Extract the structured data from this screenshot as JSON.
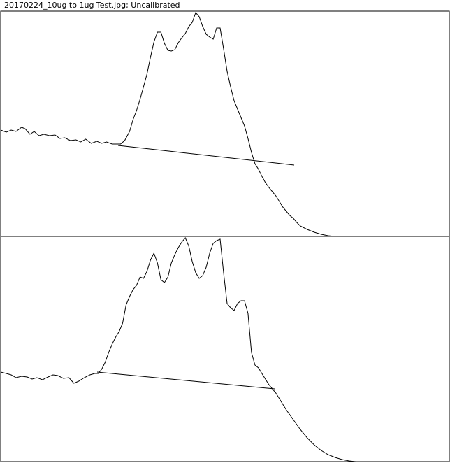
{
  "window": {
    "title": "20170224_10ug to 1ug Test.jpg; Uncalibrated"
  },
  "colors": {
    "background": "#ffffff",
    "line": "#000000"
  },
  "chart_data": [
    {
      "type": "line",
      "title": "",
      "xlabel": "",
      "ylabel": "",
      "grid": false,
      "xlim": [
        0,
        644
      ],
      "ylim": [
        0,
        322
      ],
      "series": [
        {
          "x": [
            0,
            8,
            15,
            22,
            30,
            35,
            42,
            48,
            55,
            62,
            70,
            78,
            85,
            92,
            100,
            108,
            115,
            122,
            130,
            138,
            145,
            152,
            160,
            168,
            172,
            178,
            185,
            190,
            195,
            200,
            205,
            210,
            215,
            220,
            225,
            230,
            235,
            240,
            245,
            250,
            255,
            260,
            265,
            270,
            275,
            280,
            285,
            290,
            295,
            300,
            305,
            310,
            315,
            320,
            325,
            330,
            335,
            340,
            345,
            350,
            355,
            360,
            365,
            370,
            375,
            380,
            385,
            390,
            395,
            400,
            405,
            410,
            415,
            420,
            425,
            430,
            440,
            450,
            460,
            470,
            480,
            490,
            500,
            510,
            520,
            530,
            540,
            550,
            560,
            570,
            580,
            590,
            600,
            610,
            620,
            630,
            638
          ],
          "y": [
            152,
            149,
            152,
            150,
            156,
            154,
            146,
            150,
            144,
            146,
            144,
            145,
            140,
            141,
            137,
            138,
            135,
            139,
            133,
            136,
            133,
            135,
            132,
            132,
            132,
            137,
            150,
            167,
            180,
            196,
            214,
            232,
            256,
            278,
            292,
            292,
            276,
            266,
            265,
            267,
            277,
            284,
            290,
            300,
            306,
            320,
            314,
            300,
            289,
            285,
            282,
            298,
            298,
            268,
            236,
            214,
            194,
            182,
            170,
            158,
            140,
            120,
            104,
            96,
            86,
            77,
            70,
            64,
            58,
            50,
            42,
            36,
            30,
            26,
            20,
            15,
            10,
            6,
            3,
            1,
            0,
            0,
            0,
            0,
            0,
            0,
            0,
            0,
            0,
            0,
            0,
            0,
            0,
            0,
            0,
            0,
            0
          ]
        },
        {
          "x": [
            0,
            8,
            15,
            22,
            30,
            38,
            45,
            52,
            60,
            68,
            75,
            82,
            90,
            98,
            105,
            112,
            120,
            128,
            135,
            140,
            145,
            150,
            155,
            160,
            165,
            170,
            175,
            180,
            185,
            190,
            195,
            200,
            205,
            210,
            215,
            220,
            225,
            230,
            235,
            240,
            245,
            250,
            255,
            260,
            265,
            270,
            275,
            280,
            285,
            290,
            295,
            300,
            305,
            310,
            315,
            320,
            325,
            330,
            335,
            340,
            345,
            350,
            355,
            360,
            365,
            370,
            375,
            380,
            385,
            390,
            395,
            400,
            405,
            410,
            420,
            430,
            440,
            450,
            460,
            470,
            480,
            490,
            500,
            510,
            520,
            530,
            540,
            550,
            560,
            570,
            580,
            590,
            600,
            610,
            620,
            630,
            640
          ],
          "y": [
            128,
            126,
            124,
            120,
            122,
            121,
            118,
            120,
            117,
            121,
            124,
            123,
            119,
            120,
            112,
            115,
            120,
            124,
            126,
            126,
            132,
            142,
            156,
            168,
            178,
            186,
            198,
            224,
            236,
            246,
            252,
            264,
            262,
            272,
            288,
            298,
            284,
            260,
            256,
            264,
            284,
            296,
            306,
            314,
            320,
            308,
            286,
            270,
            262,
            266,
            278,
            298,
            312,
            316,
            318,
            270,
            226,
            220,
            216,
            226,
            230,
            230,
            212,
            156,
            138,
            134,
            126,
            118,
            110,
            104,
            98,
            90,
            82,
            74,
            60,
            46,
            34,
            24,
            16,
            10,
            6,
            3,
            1,
            0,
            0,
            0,
            0,
            0,
            0,
            0,
            0,
            0,
            0,
            0,
            0,
            0,
            0
          ]
        }
      ]
    }
  ]
}
